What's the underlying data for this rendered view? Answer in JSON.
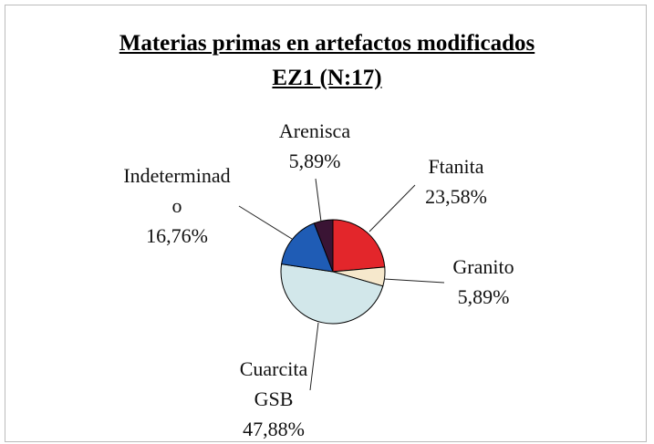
{
  "chart_data": {
    "type": "pie",
    "title": "Materias primas en artefactos modificados",
    "subtitle": "EZ1 (N:17)",
    "categories": [
      "Ftanita",
      "Granito",
      "Cuarcita GSB",
      "Indeterminado",
      "Arenisca"
    ],
    "values": [
      23.58,
      5.89,
      47.88,
      16.76,
      5.89
    ],
    "value_labels": [
      "23,58%",
      "5,89%",
      "47,88%",
      "16,76%",
      "5,89%"
    ],
    "colors": [
      "#e3262b",
      "#f6e8cc",
      "#d2e7ea",
      "#1f5cb5",
      "#3a1434"
    ]
  }
}
